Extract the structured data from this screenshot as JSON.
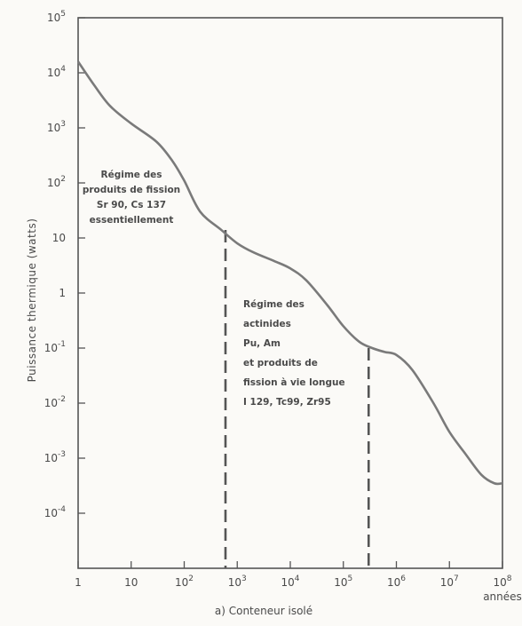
{
  "chart_data": {
    "type": "line",
    "title": "",
    "caption": "a) Conteneur isolé",
    "xlabel": "années",
    "ylabel": "Puissance thermique (watts)",
    "x_scale": "log",
    "y_scale": "log",
    "xlim": [
      1,
      100000000
    ],
    "ylim": [
      1e-05,
      100000
    ],
    "grid": false,
    "x_ticks": [
      {
        "value": 1,
        "label": "1"
      },
      {
        "value": 10,
        "label": "10"
      },
      {
        "value": 100,
        "base": "10",
        "exp": "2"
      },
      {
        "value": 1000,
        "base": "10",
        "exp": "3"
      },
      {
        "value": 10000,
        "base": "10",
        "exp": "4"
      },
      {
        "value": 100000,
        "base": "10",
        "exp": "5"
      },
      {
        "value": 1000000,
        "base": "10",
        "exp": "6"
      },
      {
        "value": 10000000,
        "base": "10",
        "exp": "7"
      },
      {
        "value": 100000000,
        "base": "10",
        "exp": "8"
      }
    ],
    "y_ticks": [
      {
        "value": 0.0001,
        "base": "10",
        "exp": "-4"
      },
      {
        "value": 0.001,
        "base": "10",
        "exp": "-3"
      },
      {
        "value": 0.01,
        "base": "10",
        "exp": "-2"
      },
      {
        "value": 0.1,
        "base": "10",
        "exp": "-1"
      },
      {
        "value": 1,
        "label": "1"
      },
      {
        "value": 10,
        "label": "10"
      },
      {
        "value": 100,
        "base": "10",
        "exp": "2"
      },
      {
        "value": 1000,
        "base": "10",
        "exp": "3"
      },
      {
        "value": 10000,
        "base": "10",
        "exp": "4"
      },
      {
        "value": 100000,
        "base": "10",
        "exp": "5"
      }
    ],
    "series": [
      {
        "color": "#7a7a7a",
        "points": [
          [
            1,
            16000
          ],
          [
            2,
            6000
          ],
          [
            4,
            2500
          ],
          [
            10,
            1200
          ],
          [
            30,
            560
          ],
          [
            60,
            250
          ],
          [
            100,
            110
          ],
          [
            200,
            30
          ],
          [
            500,
            14
          ],
          [
            1000,
            8
          ],
          [
            2000,
            5.5
          ],
          [
            5000,
            3.8
          ],
          [
            10000,
            2.8
          ],
          [
            20000,
            1.7
          ],
          [
            50000,
            0.6
          ],
          [
            100000,
            0.25
          ],
          [
            200000,
            0.13
          ],
          [
            350000,
            0.1
          ],
          [
            600000,
            0.085
          ],
          [
            1000000,
            0.075
          ],
          [
            2000000,
            0.04
          ],
          [
            5000000,
            0.01
          ],
          [
            10000000,
            0.003
          ],
          [
            20000000,
            0.0012
          ],
          [
            40000000,
            0.0005
          ],
          [
            70000000,
            0.00035
          ],
          [
            100000000,
            0.00035
          ]
        ]
      }
    ],
    "dividers": [
      {
        "x": 600,
        "style": "dashed"
      },
      {
        "x": 300000,
        "style": "dashed"
      }
    ],
    "annotations": [
      {
        "lines": [
          "Régime des",
          "produits de fission",
          "Sr 90, Cs 137",
          "essentiellement"
        ]
      },
      {
        "lines": [
          "Régime des",
          "actinides",
          "Pu, Am",
          "et produits de",
          "fission à vie longue",
          "I 129, Tc99, Zr95"
        ]
      }
    ]
  }
}
